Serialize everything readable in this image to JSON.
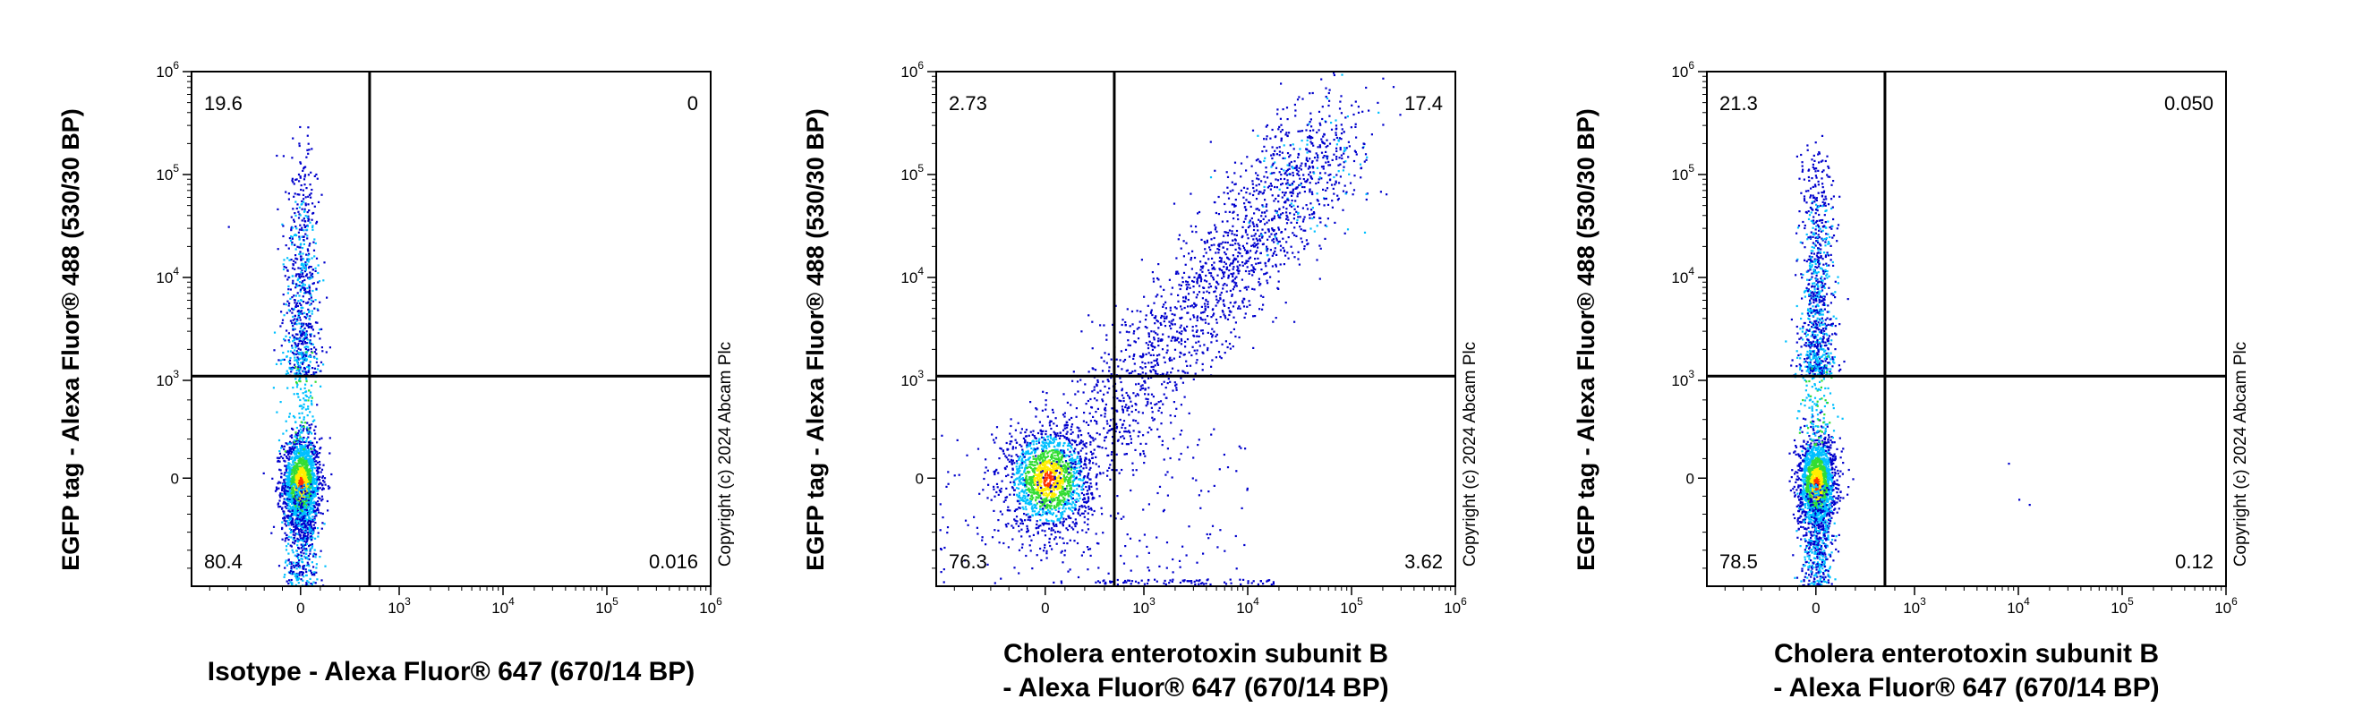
{
  "figure": {
    "copyright": "Copyright (c) 2024 Abcam Plc",
    "colors": {
      "density_low": "#0000cc",
      "density_mid": "#00c0ff",
      "density_mid2": "#33dd33",
      "density_high1": "#ffee00",
      "density_high2": "#ff3300",
      "gate": "#000000"
    }
  },
  "chart_data": [
    {
      "type": "scatter",
      "subtype": "flow-cytometry-pseudocolor-density-with-quadrant-gate",
      "ylabel": "EGFP tag - Alexa Fluor® 488 (530/30 BP)",
      "xlabel_lines": [
        "Isotype - Alexa Fluor® 647 (670/14 BP)"
      ],
      "x_scale": "biexponential",
      "y_scale": "biexponential",
      "x_ticks": [
        "0",
        "10^3",
        "10^4",
        "10^5",
        "10^6"
      ],
      "y_ticks": [
        "0",
        "10^3",
        "10^4",
        "10^5",
        "10^6"
      ],
      "gate": {
        "x": 700,
        "y": 1100
      },
      "quadrants": {
        "upper_left": "19.6",
        "upper_right": "0",
        "lower_left": "80.4",
        "lower_right": "0.016"
      },
      "populations": [
        {
          "x": 0,
          "y": 0,
          "note": "EGFP-negative, isotype-negative core"
        },
        {
          "x": 0,
          "y": 15000,
          "note": "EGFP-positive, extending up to ~10^5.5"
        }
      ]
    },
    {
      "type": "scatter",
      "subtype": "flow-cytometry-pseudocolor-density-with-quadrant-gate",
      "ylabel": "EGFP tag - Alexa Fluor® 488 (530/30 BP)",
      "xlabel_lines": [
        "Cholera enterotoxin subunit B",
        "- Alexa Fluor® 647 (670/14 BP)"
      ],
      "x_scale": "biexponential",
      "y_scale": "biexponential",
      "x_ticks": [
        "0",
        "10^3",
        "10^4",
        "10^5",
        "10^6"
      ],
      "y_ticks": [
        "0",
        "10^3",
        "10^4",
        "10^5",
        "10^6"
      ],
      "gate": {
        "x": 700,
        "y": 1100
      },
      "quadrants": {
        "upper_left": "2.73",
        "upper_right": "17.4",
        "lower_left": "76.3",
        "lower_right": "3.62"
      },
      "populations": [
        {
          "x": 0,
          "y": 0,
          "note": "double-negative core"
        },
        {
          "x": 10000,
          "y": 20000,
          "note": "diagonal double-positive population"
        }
      ]
    },
    {
      "type": "scatter",
      "subtype": "flow-cytometry-pseudocolor-density-with-quadrant-gate",
      "ylabel": "EGFP tag - Alexa Fluor® 488 (530/30 BP)",
      "xlabel_lines": [
        "Cholera enterotoxin subunit B",
        "- Alexa Fluor® 647 (670/14 BP)"
      ],
      "x_scale": "biexponential",
      "y_scale": "biexponential",
      "x_ticks": [
        "0",
        "10^3",
        "10^4",
        "10^5",
        "10^6"
      ],
      "y_ticks": [
        "0",
        "10^3",
        "10^4",
        "10^5",
        "10^6"
      ],
      "gate": {
        "x": 700,
        "y": 1100
      },
      "quadrants": {
        "upper_left": "21.3",
        "upper_right": "0.050",
        "lower_left": "78.5",
        "lower_right": "0.12"
      },
      "populations": [
        {
          "x": 0,
          "y": 0,
          "note": "double-negative core"
        },
        {
          "x": 0,
          "y": 15000,
          "note": "EGFP-positive, CTB-negative"
        }
      ]
    }
  ]
}
